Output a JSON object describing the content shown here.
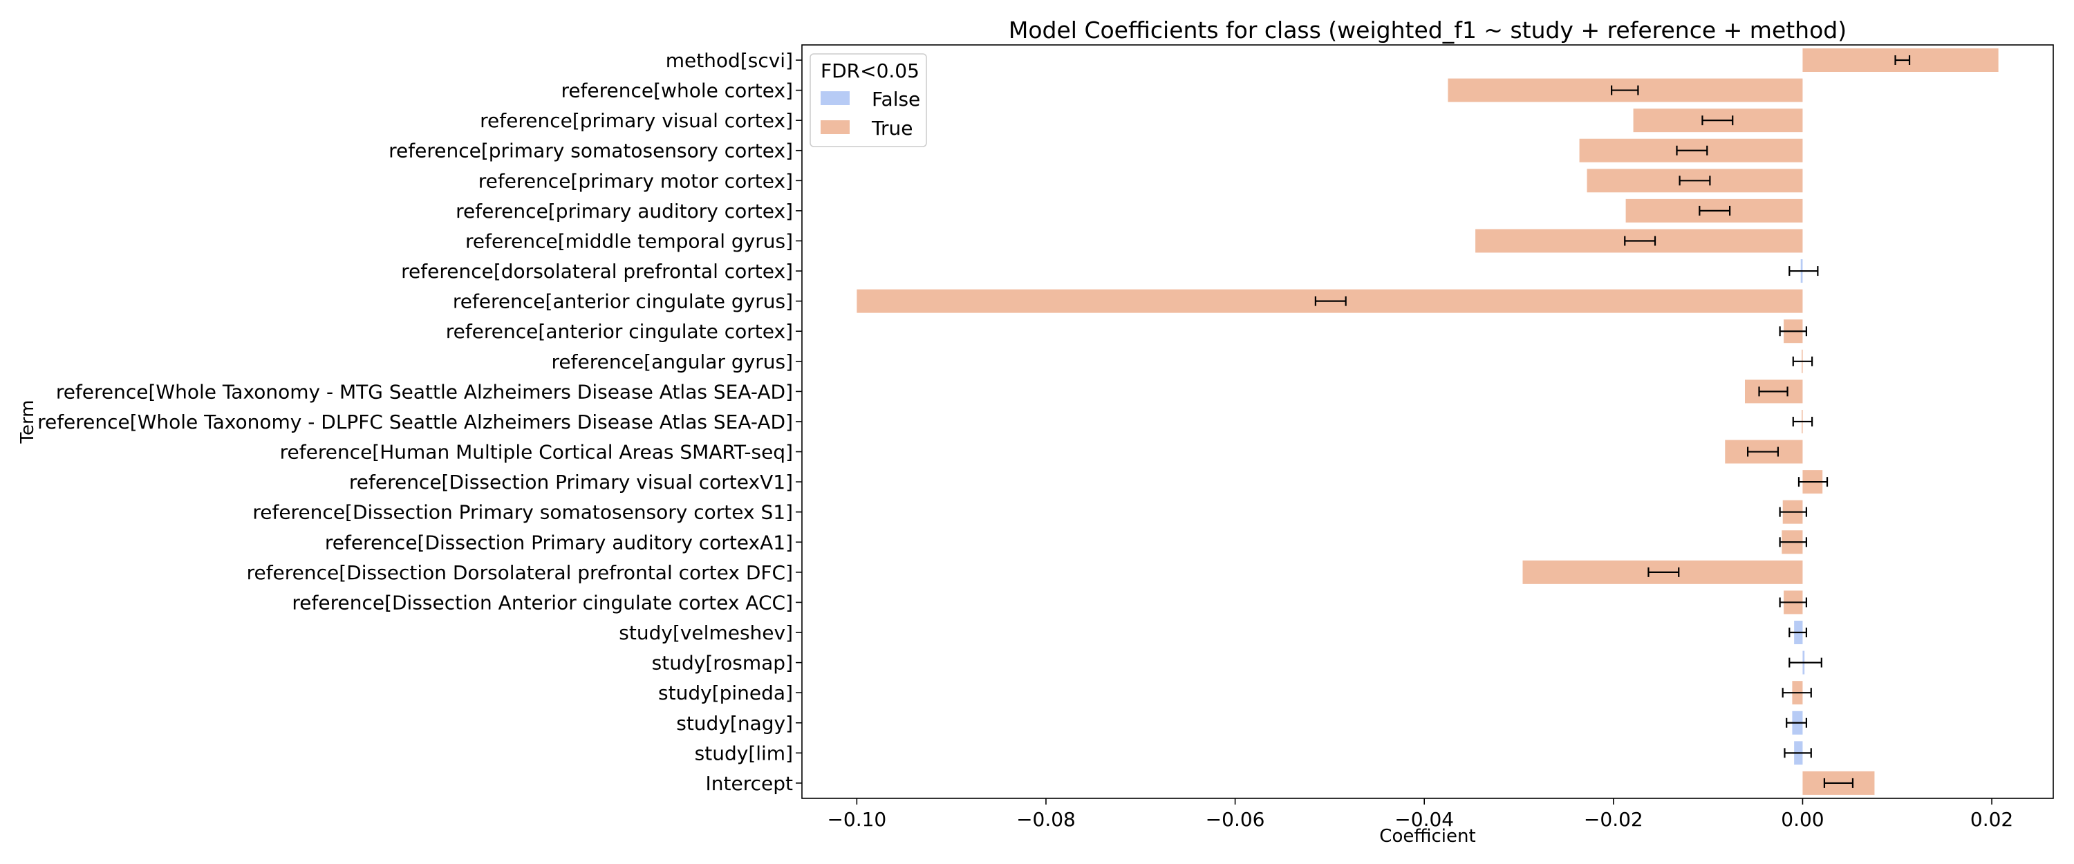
{
  "chart_data": {
    "type": "bar",
    "orientation": "horizontal",
    "title": "Model Coefficients for class (weighted_f1 ~ study + reference + method)",
    "xlabel": "Coefficient",
    "ylabel": "Term",
    "xlim": [
      -0.1058,
      0.0265
    ],
    "x_ticks": [
      -0.1,
      -0.08,
      -0.06,
      -0.04,
      -0.02,
      0.0,
      0.02
    ],
    "x_tick_labels": [
      "−0.10",
      "−0.08",
      "−0.06",
      "−0.04",
      "−0.02",
      "0.00",
      "0.02"
    ],
    "grid": false,
    "legend": {
      "title": "FDR<0.05",
      "position": "top-left",
      "entries": [
        {
          "label": "False",
          "color": "#b7cbf5"
        },
        {
          "label": "True",
          "color": "#f0bca0"
        }
      ]
    },
    "colors": {
      "False": "#b7cbf5",
      "True": "#f0bca0"
    },
    "bars": [
      {
        "term": "method[scvi]",
        "value": 0.0207,
        "fdr": "True",
        "ci": [
          0.0098,
          0.0113
        ]
      },
      {
        "term": "reference[whole cortex]",
        "value": -0.0375,
        "fdr": "True",
        "ci": [
          -0.0202,
          -0.0174
        ]
      },
      {
        "term": "reference[primary visual cortex]",
        "value": -0.0179,
        "fdr": "True",
        "ci": [
          -0.0106,
          -0.0074
        ]
      },
      {
        "term": "reference[primary somatosensory cortex]",
        "value": -0.0236,
        "fdr": "True",
        "ci": [
          -0.0133,
          -0.0101
        ]
      },
      {
        "term": "reference[primary motor cortex]",
        "value": -0.0228,
        "fdr": "True",
        "ci": [
          -0.013,
          -0.0098
        ]
      },
      {
        "term": "reference[primary auditory cortex]",
        "value": -0.0187,
        "fdr": "True",
        "ci": [
          -0.0109,
          -0.0077
        ]
      },
      {
        "term": "reference[middle temporal gyrus]",
        "value": -0.0346,
        "fdr": "True",
        "ci": [
          -0.0188,
          -0.0156
        ]
      },
      {
        "term": "reference[dorsolateral prefrontal cortex]",
        "value": -0.0002,
        "fdr": "False",
        "ci": [
          -0.0014,
          0.0016
        ]
      },
      {
        "term": "reference[anterior cingulate gyrus]",
        "value": -0.1,
        "fdr": "True",
        "ci": [
          -0.0515,
          -0.0483
        ]
      },
      {
        "term": "reference[anterior cingulate cortex]",
        "value": -0.002,
        "fdr": "True",
        "ci": [
          -0.0024,
          0.0004
        ]
      },
      {
        "term": "reference[angular gyrus]",
        "value": -0.0001,
        "fdr": "True",
        "ci": [
          -0.001,
          0.001
        ]
      },
      {
        "term": "reference[Whole Taxonomy - MTG Seattle Alzheimers Disease Atlas SEA-AD]",
        "value": -0.0061,
        "fdr": "True",
        "ci": [
          -0.0046,
          -0.0016
        ]
      },
      {
        "term": "reference[Whole Taxonomy - DLPFC Seattle Alzheimers Disease Atlas SEA-AD]",
        "value": -0.0001,
        "fdr": "True",
        "ci": [
          -0.001,
          0.001
        ]
      },
      {
        "term": "reference[Human Multiple Cortical Areas SMART-seq]",
        "value": -0.0082,
        "fdr": "True",
        "ci": [
          -0.0058,
          -0.0026
        ]
      },
      {
        "term": "reference[Dissection Primary visual cortexV1]",
        "value": 0.0021,
        "fdr": "True",
        "ci": [
          -0.0004,
          0.0026
        ]
      },
      {
        "term": "reference[Dissection Primary somatosensory cortex S1]",
        "value": -0.0021,
        "fdr": "True",
        "ci": [
          -0.0024,
          0.0004
        ]
      },
      {
        "term": "reference[Dissection Primary auditory cortexA1]",
        "value": -0.0022,
        "fdr": "True",
        "ci": [
          -0.0024,
          0.0004
        ]
      },
      {
        "term": "reference[Dissection Dorsolateral prefrontal cortex DFC]",
        "value": -0.0296,
        "fdr": "True",
        "ci": [
          -0.0163,
          -0.0131
        ]
      },
      {
        "term": "reference[Dissection Anterior cingulate cortex ACC]",
        "value": -0.002,
        "fdr": "True",
        "ci": [
          -0.0024,
          0.0004
        ]
      },
      {
        "term": "study[velmeshev]",
        "value": -0.0009,
        "fdr": "False",
        "ci": [
          -0.0014,
          0.0004
        ]
      },
      {
        "term": "study[rosmap]",
        "value": 0.0002,
        "fdr": "False",
        "ci": [
          -0.0014,
          0.002
        ]
      },
      {
        "term": "study[pineda]",
        "value": -0.0011,
        "fdr": "True",
        "ci": [
          -0.0021,
          0.0009
        ]
      },
      {
        "term": "study[nagy]",
        "value": -0.0011,
        "fdr": "False",
        "ci": [
          -0.0017,
          0.0004
        ]
      },
      {
        "term": "study[lim]",
        "value": -0.0009,
        "fdr": "False",
        "ci": [
          -0.0019,
          0.0009
        ]
      },
      {
        "term": "Intercept",
        "value": 0.0076,
        "fdr": "True",
        "ci": [
          0.0023,
          0.0053
        ]
      }
    ]
  }
}
